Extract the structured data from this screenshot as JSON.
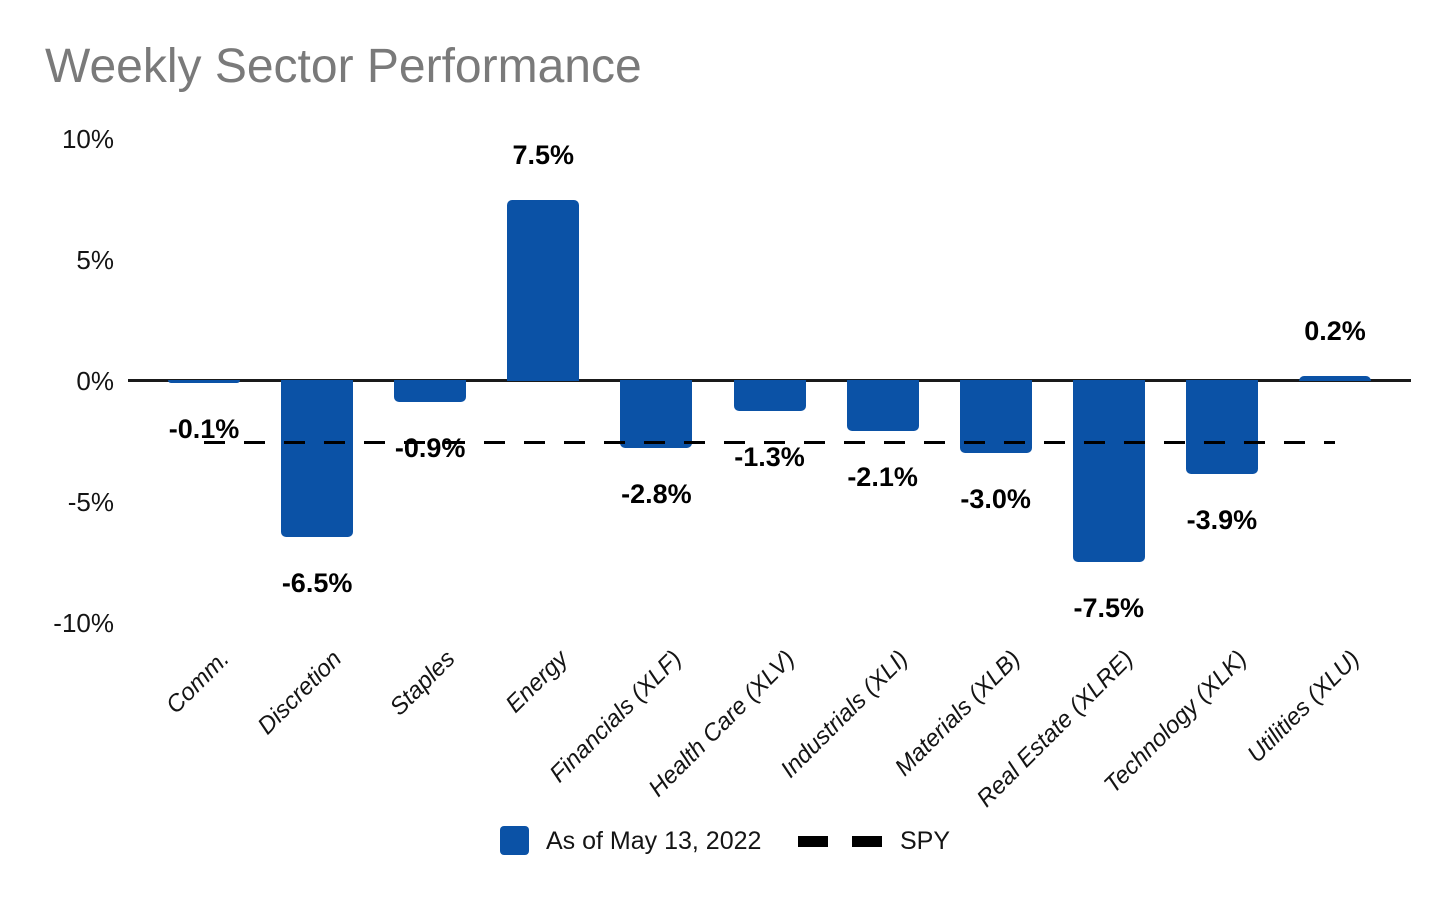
{
  "chart_data": {
    "type": "bar",
    "title": "Weekly Sector Performance",
    "categories": [
      "Comm.",
      "Discretion",
      "Staples",
      "Energy",
      "Financials (XLF)",
      "Health Care (XLV)",
      "Industrials (XLI)",
      "Materials (XLB)",
      "Real Estate (XLRE)",
      "Technology (XLK)",
      "Utilities (XLU)"
    ],
    "series": [
      {
        "name": "As of May 13, 2022",
        "type": "bar",
        "color": "#0b52a6",
        "values": [
          -0.1,
          -6.5,
          -0.9,
          7.5,
          -2.8,
          -1.3,
          -2.1,
          -3.0,
          -7.5,
          -3.9,
          0.2
        ],
        "data_labels": [
          "-0.1%",
          "-6.5%",
          "-0.9%",
          "7.5%",
          "-2.8%",
          "-1.3%",
          "-2.1%",
          "-3.0%",
          "-7.5%",
          "-3.9%",
          "0.2%"
        ]
      },
      {
        "name": "SPY",
        "type": "line",
        "line_style": "dashed",
        "color": "#000000",
        "value": -2.5
      }
    ],
    "y_axis": {
      "tick_values": [
        10,
        5,
        0,
        -5,
        -10
      ],
      "tick_labels": [
        "10%",
        "5%",
        "0%",
        "-5%",
        "-10%"
      ],
      "min": -10,
      "max": 10
    },
    "grid": false,
    "legend_position": "bottom"
  }
}
